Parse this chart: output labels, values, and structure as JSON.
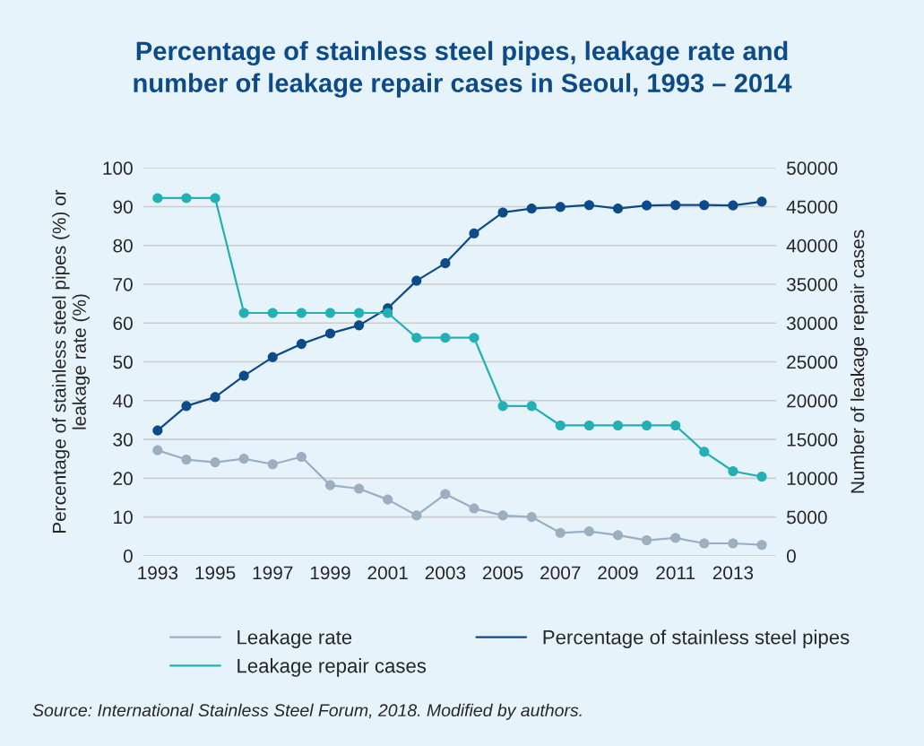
{
  "chart_data": {
    "type": "line",
    "title": "Percentage of stainless steel pipes, leakage rate and\nnumber of leakage repair cases in Seoul, 1993 – 2014",
    "ylabel": "Percentage of stainless steel pipes (%) or\nleakage rate (%)",
    "y2label": "Number of leakage repair cases",
    "x": [
      1993,
      1994,
      1995,
      1996,
      1997,
      1998,
      1999,
      2000,
      2001,
      2002,
      2003,
      2004,
      2005,
      2006,
      2007,
      2008,
      2009,
      2010,
      2011,
      2012,
      2013,
      2014
    ],
    "xlim": [
      1992.5,
      2014.5
    ],
    "xticks": [
      1993,
      1995,
      1997,
      1999,
      2001,
      2003,
      2005,
      2007,
      2009,
      2011,
      2013
    ],
    "ylim": [
      0,
      100
    ],
    "yticks": [
      0,
      10,
      20,
      30,
      40,
      50,
      60,
      70,
      80,
      90,
      100
    ],
    "y2lim": [
      0,
      50000
    ],
    "y2ticks": [
      0,
      5000,
      10000,
      15000,
      20000,
      25000,
      30000,
      35000,
      40000,
      45000,
      50000
    ],
    "series": [
      {
        "name": "Leakage rate",
        "color": "#9bafc0",
        "values": [
          27.2,
          24.8,
          24.1,
          25.0,
          23.6,
          25.5,
          18.2,
          17.3,
          14.5,
          10.4,
          15.9,
          12.2,
          10.4,
          10.0,
          5.9,
          6.3,
          5.3,
          4.0,
          4.6,
          3.2,
          3.2,
          2.8
        ]
      },
      {
        "name": "Percentage of stainless steel pipes",
        "color": "#0d4a8a",
        "values": [
          32.3,
          38.6,
          40.9,
          46.4,
          51.2,
          54.6,
          57.3,
          59.4,
          63.8,
          70.9,
          75.4,
          83.1,
          88.5,
          89.5,
          89.9,
          90.4,
          89.5,
          90.3,
          90.4,
          90.4,
          90.3,
          91.3
        ]
      },
      {
        "name": "Leakage repair cases",
        "color": "#22b0b4",
        "axis": "y2",
        "values": [
          46100,
          46100,
          46100,
          31300,
          31300,
          31300,
          31300,
          31300,
          31300,
          28100,
          28100,
          28100,
          19300,
          19300,
          16800,
          16800,
          16800,
          16800,
          16800,
          13400,
          10900,
          10200
        ]
      }
    ],
    "marker": "circle",
    "line_style": "solid",
    "grid": "y",
    "legend": "bottom",
    "annotations": [
      "Source: International Stainless Steel Forum, 2018. Modified by authors."
    ]
  }
}
